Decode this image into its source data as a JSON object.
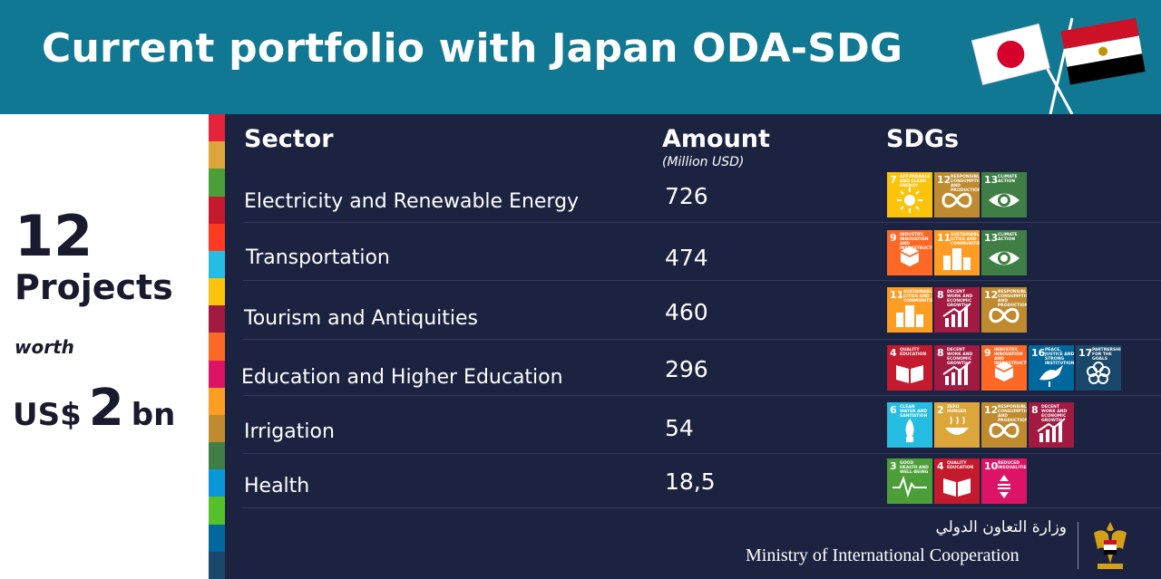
{
  "header": {
    "title": "Current portfolio with Japan ODA-SDG"
  },
  "summary": {
    "count": "12",
    "projects_label": "Projects",
    "worth_label": "worth",
    "currency": "US$",
    "amount": "2",
    "unit": "bn"
  },
  "table": {
    "col_sector": "Sector",
    "col_amount": "Amount",
    "col_amount_unit": "(Million USD)",
    "col_sdgs": "SDGs",
    "rows": [
      {
        "sector": "Electricity and Renewable Energy",
        "amount": "726"
      },
      {
        "sector": "Transportation",
        "amount": "474"
      },
      {
        "sector": "Tourism and Antiquities",
        "amount": "460"
      },
      {
        "sector": "Education and Higher Education",
        "amount": "296"
      },
      {
        "sector": "Irrigation",
        "amount": "54"
      },
      {
        "sector": "Health",
        "amount": "18,5"
      }
    ]
  },
  "sdg_tiles": {
    "g3": {
      "num": "3",
      "label": "Good health and well-being",
      "color": "#4c9f38"
    },
    "g2": {
      "num": "2",
      "label": "Zero hunger",
      "color": "#dda63a"
    },
    "g4": {
      "num": "4",
      "label": "Quality education",
      "color": "#c5192d"
    },
    "g6": {
      "num": "6",
      "label": "Clean water and sanitation",
      "color": "#26bde2"
    },
    "g7": {
      "num": "7",
      "label": "Affordable and clean energy",
      "color": "#fcc30b"
    },
    "g8": {
      "num": "8",
      "label": "Decent work and economic growth",
      "color": "#a21942"
    },
    "g9": {
      "num": "9",
      "label": "Industry, innovation and infrastructure",
      "color": "#fd6925"
    },
    "g10": {
      "num": "10",
      "label": "Reduced inequalities",
      "color": "#dd1367"
    },
    "g11": {
      "num": "11",
      "label": "Sustainable cities and communities",
      "color": "#fd9d24"
    },
    "g12": {
      "num": "12",
      "label": "Responsible consumption and production",
      "color": "#bf8b2e"
    },
    "g13": {
      "num": "13",
      "label": "Climate action",
      "color": "#3f7e44"
    },
    "g16": {
      "num": "16",
      "label": "Peace, justice and strong institutions",
      "color": "#00689d"
    },
    "g17": {
      "num": "17",
      "label": "Partnerships for the goals",
      "color": "#19486a"
    }
  },
  "footer": {
    "arabic_name": "وزارة التعاون الدولي",
    "ministry": "Ministry of  International Cooperation"
  },
  "colors": {
    "header_bg": "#107892",
    "panel_bg": "#1c2340",
    "stripe": [
      "#e5243b",
      "#dda63a",
      "#4c9f38",
      "#c5192d",
      "#ff3a21",
      "#26bde2",
      "#fcc30b",
      "#a21942",
      "#fd6925",
      "#dd1367",
      "#fd9d24",
      "#bf8b2e",
      "#3f7e44",
      "#0a97d9",
      "#56c02b",
      "#00689d",
      "#19486a"
    ]
  }
}
